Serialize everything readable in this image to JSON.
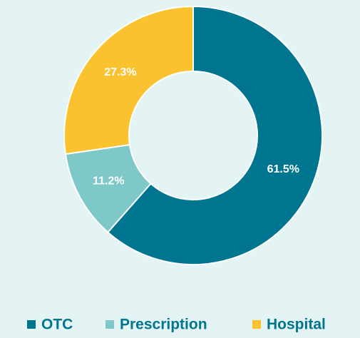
{
  "chart_data": {
    "type": "donut",
    "categories": [
      "OTC",
      "Prescription",
      "Hospital"
    ],
    "values": [
      61.5,
      11.2,
      27.3
    ],
    "value_labels": [
      "61.5%",
      "11.2%",
      "27.3%"
    ],
    "colors": [
      "#00758f",
      "#7ec8c9",
      "#f9c22e"
    ],
    "legend": "bottom"
  }
}
